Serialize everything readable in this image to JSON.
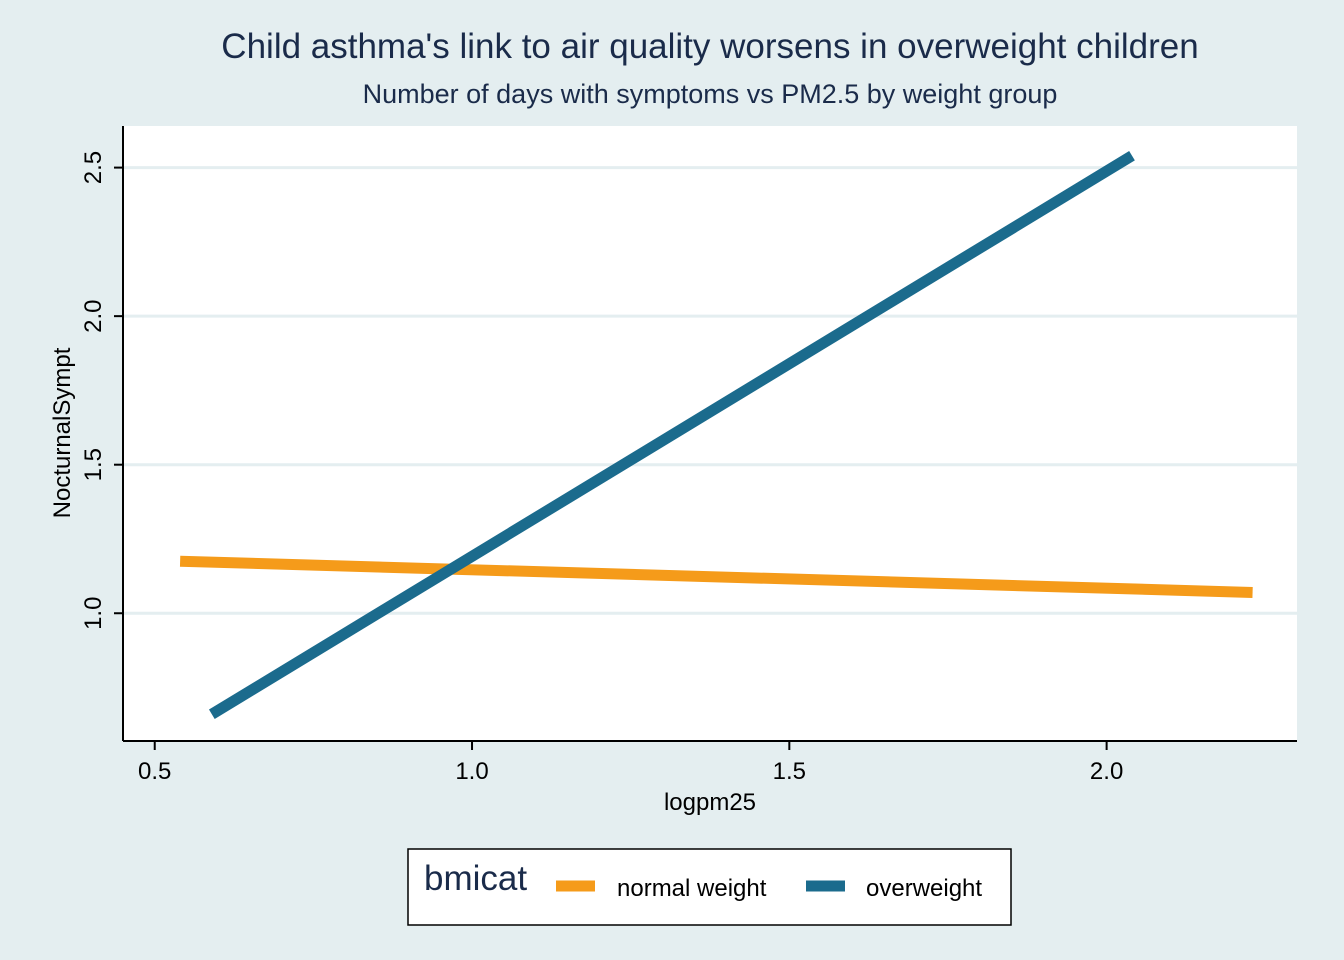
{
  "chart_data": {
    "type": "line",
    "title": "Child asthma's link to air quality worsens in overweight children",
    "subtitle": "Number of days with symptoms vs PM2.5 by weight group",
    "xlabel": "logpm25",
    "ylabel": "NocturnalSympt",
    "xlim": [
      0.45,
      2.3
    ],
    "ylim": [
      0.57,
      2.64
    ],
    "x_ticks": [
      0.5,
      1.0,
      1.5,
      2.0
    ],
    "x_tick_labels": [
      "0.5",
      "1.0",
      "1.5",
      "2.0"
    ],
    "y_ticks": [
      1.0,
      1.5,
      2.0,
      2.5
    ],
    "y_tick_labels": [
      "1.0",
      "1.5",
      "2.0",
      "2.5"
    ],
    "grid": "horizontal",
    "legend_position": "bottom",
    "legend_title": "bmicat",
    "series": [
      {
        "name": "normal weight",
        "color": "#f59b1a",
        "x": [
          0.54,
          2.23
        ],
        "y": [
          1.175,
          1.07
        ]
      },
      {
        "name": "overweight",
        "color": "#1b6b8d",
        "x": [
          0.59,
          2.04
        ],
        "y": [
          0.66,
          2.54
        ]
      }
    ]
  }
}
